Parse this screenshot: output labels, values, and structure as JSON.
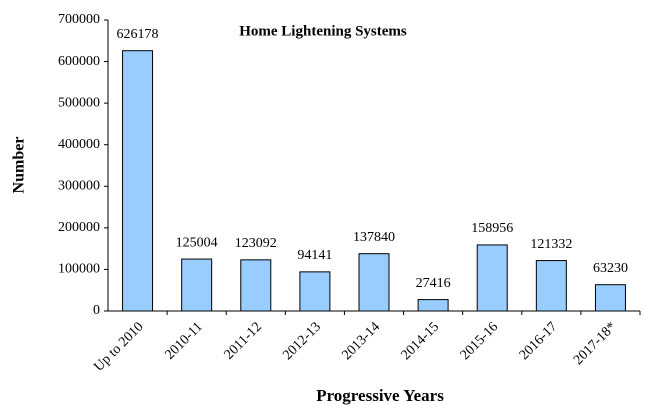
{
  "chart_data": {
    "type": "bar",
    "title": "Home Lightening Systems",
    "x_label": "Progressive Years",
    "y_label": "Number",
    "categories": [
      "Up to 2010",
      "2010-11",
      "2011-12",
      "2012-13",
      "2013-14",
      "2014-15",
      "2015-16",
      "2016-17",
      "2017-18*"
    ],
    "values": [
      626178,
      125004,
      123092,
      94141,
      137840,
      27416,
      158956,
      121332,
      63230
    ],
    "color": "#99ccff",
    "ylim": [
      0,
      700000
    ],
    "yticks": [
      0,
      100000,
      200000,
      300000,
      400000,
      500000,
      600000,
      700000
    ],
    "grid": false
  }
}
